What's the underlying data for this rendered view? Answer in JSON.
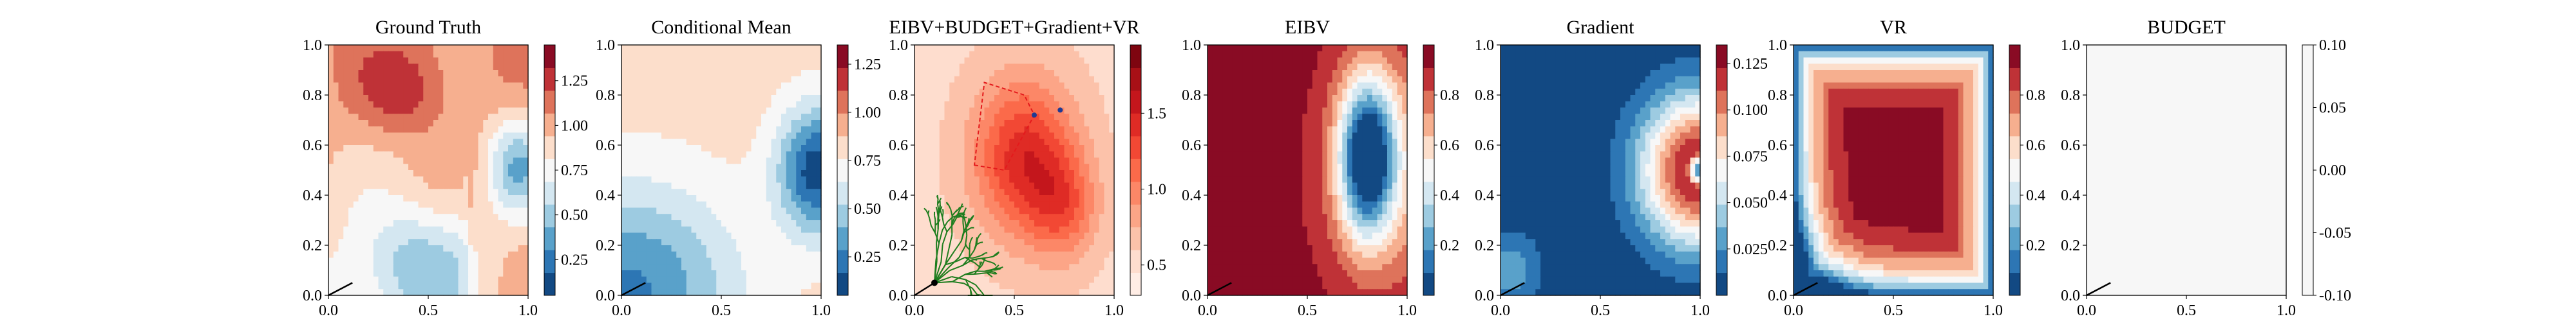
{
  "chart_data": [
    {
      "type": "heatmap",
      "title": "Ground Truth",
      "field": "truth",
      "cmap": "RdBu",
      "xlim": [
        0,
        1
      ],
      "ylim": [
        0,
        1
      ],
      "xticks": [
        "0.0",
        "0.5",
        "1.0"
      ],
      "yticks": [
        "0.0",
        "0.2",
        "0.4",
        "0.6",
        "0.8",
        "1.0"
      ],
      "colorbar": {
        "range": [
          0.05,
          1.45
        ],
        "ticks": [
          "0.25",
          "0.50",
          "0.75",
          "1.00",
          "1.25"
        ]
      },
      "path": [
        [
          0.0,
          0.0
        ],
        [
          0.12,
          0.05
        ]
      ]
    },
    {
      "type": "heatmap",
      "title": "Conditional Mean",
      "field": "mean",
      "cmap": "RdBu",
      "xlim": [
        0,
        1
      ],
      "ylim": [
        0,
        1
      ],
      "xticks": [
        "0.0",
        "0.5",
        "1.0"
      ],
      "yticks": [
        "0.0",
        "0.2",
        "0.4",
        "0.6",
        "0.8",
        "1.0"
      ],
      "colorbar": {
        "range": [
          0.05,
          1.35
        ],
        "ticks": [
          "0.25",
          "0.50",
          "0.75",
          "1.00",
          "1.25"
        ]
      },
      "path": [
        [
          0.0,
          0.0
        ],
        [
          0.12,
          0.05
        ]
      ]
    },
    {
      "type": "heatmap",
      "title": "EIBV+BUDGET+Gradient+VR",
      "field": "combined",
      "cmap": "Reds",
      "xlim": [
        0,
        1
      ],
      "ylim": [
        0,
        1
      ],
      "xticks": [
        "0.0",
        "0.5",
        "1.0"
      ],
      "yticks": [
        "0.0",
        "0.2",
        "0.4",
        "0.6",
        "0.8",
        "1.0"
      ],
      "colorbar": {
        "range": [
          0.3,
          1.95
        ],
        "ticks": [
          "0.5",
          "1.0",
          "1.5"
        ]
      },
      "tree_color": "#1e7d1e",
      "tree_root": [
        0.1,
        0.05
      ],
      "budget_polygon": [
        [
          0.3,
          0.52
        ],
        [
          0.45,
          0.5
        ],
        [
          0.6,
          0.72
        ],
        [
          0.55,
          0.8
        ],
        [
          0.35,
          0.85
        ]
      ],
      "markers": [
        [
          0.6,
          0.72
        ],
        [
          0.73,
          0.74
        ]
      ],
      "path": [
        [
          0.0,
          0.0
        ],
        [
          0.1,
          0.05
        ]
      ]
    },
    {
      "type": "heatmap",
      "title": "EIBV",
      "field": "eibv",
      "cmap": "RdBu",
      "xlim": [
        0,
        1
      ],
      "ylim": [
        0,
        1
      ],
      "xticks": [
        "0.0",
        "0.5",
        "1.0"
      ],
      "yticks": [
        "0.0",
        "0.2",
        "0.4",
        "0.6",
        "0.8",
        "1.0"
      ],
      "colorbar": {
        "range": [
          0.0,
          1.0
        ],
        "ticks": [
          "0.2",
          "0.4",
          "0.6",
          "0.8"
        ]
      },
      "path": [
        [
          0.0,
          0.0
        ],
        [
          0.12,
          0.05
        ]
      ]
    },
    {
      "type": "heatmap",
      "title": "Gradient",
      "field": "gradient",
      "cmap": "RdBu",
      "xlim": [
        0,
        1
      ],
      "ylim": [
        0,
        1
      ],
      "xticks": [
        "0.0",
        "0.5",
        "1.0"
      ],
      "yticks": [
        "0.0",
        "0.2",
        "0.4",
        "0.6",
        "0.8",
        "1.0"
      ],
      "colorbar": {
        "range": [
          0.0,
          0.135
        ],
        "ticks": [
          "0.025",
          "0.050",
          "0.075",
          "0.100",
          "0.125"
        ]
      },
      "path": [
        [
          0.0,
          0.0
        ],
        [
          0.12,
          0.05
        ]
      ]
    },
    {
      "type": "heatmap",
      "title": "VR",
      "field": "vr",
      "cmap": "RdBu",
      "xlim": [
        0,
        1
      ],
      "ylim": [
        0,
        1
      ],
      "xticks": [
        "0.0",
        "0.5",
        "1.0"
      ],
      "yticks": [
        "0.0",
        "0.2",
        "0.4",
        "0.6",
        "0.8",
        "1.0"
      ],
      "colorbar": {
        "range": [
          0.0,
          1.0
        ],
        "ticks": [
          "0.2",
          "0.4",
          "0.6",
          "0.8"
        ]
      },
      "path": [
        [
          0.0,
          0.0
        ],
        [
          0.12,
          0.05
        ]
      ]
    },
    {
      "type": "heatmap",
      "title": "BUDGET",
      "field": "budget",
      "cmap": "RdBu",
      "xlim": [
        0,
        1
      ],
      "ylim": [
        0,
        1
      ],
      "xticks": [
        "0.0",
        "0.5",
        "1.0"
      ],
      "yticks": [
        "0.0",
        "0.2",
        "0.4",
        "0.6",
        "0.8",
        "1.0"
      ],
      "colorbar": {
        "range": [
          -0.1,
          0.1
        ],
        "ticks": [
          "-0.10",
          "-0.05",
          "0.00",
          "0.05",
          "0.10"
        ]
      },
      "constant_value": 0.0,
      "path": [
        [
          0.0,
          0.0
        ],
        [
          0.12,
          0.05
        ]
      ]
    }
  ]
}
